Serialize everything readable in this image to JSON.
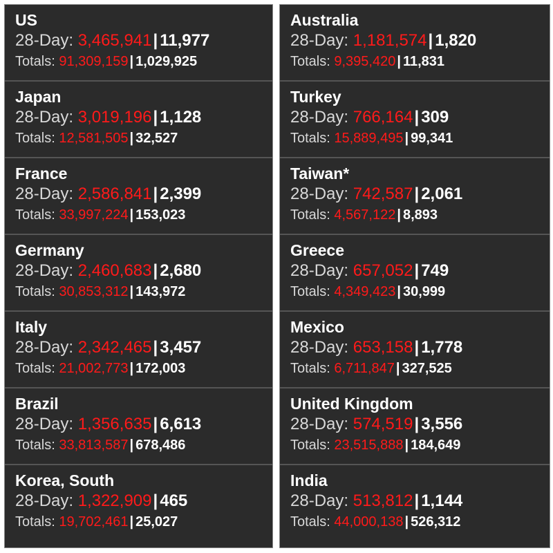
{
  "columns": {
    "left": [
      {
        "country": "US",
        "day28_label": "28-Day:",
        "day28_cases": "3,465,941",
        "day28_deaths": "11,977",
        "totals_label": "Totals:",
        "total_cases": "91,309,159",
        "total_deaths": "1,029,925"
      },
      {
        "country": "Japan",
        "day28_label": "28-Day:",
        "day28_cases": "3,019,196",
        "day28_deaths": "1,128",
        "totals_label": "Totals:",
        "total_cases": "12,581,505",
        "total_deaths": "32,527"
      },
      {
        "country": "France",
        "day28_label": "28-Day:",
        "day28_cases": "2,586,841",
        "day28_deaths": "2,399",
        "totals_label": "Totals:",
        "total_cases": "33,997,224",
        "total_deaths": "153,023"
      },
      {
        "country": "Germany",
        "day28_label": "28-Day:",
        "day28_cases": "2,460,683",
        "day28_deaths": "2,680",
        "totals_label": "Totals:",
        "total_cases": "30,853,312",
        "total_deaths": "143,972"
      },
      {
        "country": "Italy",
        "day28_label": "28-Day:",
        "day28_cases": "2,342,465",
        "day28_deaths": "3,457",
        "totals_label": "Totals:",
        "total_cases": "21,002,773",
        "total_deaths": "172,003"
      },
      {
        "country": "Brazil",
        "day28_label": "28-Day:",
        "day28_cases": "1,356,635",
        "day28_deaths": "6,613",
        "totals_label": "Totals:",
        "total_cases": "33,813,587",
        "total_deaths": "678,486"
      },
      {
        "country": "Korea, South",
        "day28_label": "28-Day:",
        "day28_cases": "1,322,909",
        "day28_deaths": "465",
        "totals_label": "Totals:",
        "total_cases": "19,702,461",
        "total_deaths": "25,027"
      }
    ],
    "right": [
      {
        "country": "Australia",
        "day28_label": "28-Day:",
        "day28_cases": "1,181,574",
        "day28_deaths": "1,820",
        "totals_label": "Totals:",
        "total_cases": "9,395,420",
        "total_deaths": "11,831"
      },
      {
        "country": "Turkey",
        "day28_label": "28-Day:",
        "day28_cases": "766,164",
        "day28_deaths": "309",
        "totals_label": "Totals:",
        "total_cases": "15,889,495",
        "total_deaths": "99,341"
      },
      {
        "country": "Taiwan*",
        "day28_label": "28-Day:",
        "day28_cases": "742,587",
        "day28_deaths": "2,061",
        "totals_label": "Totals:",
        "total_cases": "4,567,122",
        "total_deaths": "8,893"
      },
      {
        "country": "Greece",
        "day28_label": "28-Day:",
        "day28_cases": "657,052",
        "day28_deaths": "749",
        "totals_label": "Totals:",
        "total_cases": "4,349,423",
        "total_deaths": "30,999"
      },
      {
        "country": "Mexico",
        "day28_label": "28-Day:",
        "day28_cases": "653,158",
        "day28_deaths": "1,778",
        "totals_label": "Totals:",
        "total_cases": "6,711,847",
        "total_deaths": "327,525"
      },
      {
        "country": "United Kingdom",
        "day28_label": "28-Day:",
        "day28_cases": "574,519",
        "day28_deaths": "3,556",
        "totals_label": "Totals:",
        "total_cases": "23,515,888",
        "total_deaths": "184,649"
      },
      {
        "country": "India",
        "day28_label": "28-Day:",
        "day28_cases": "513,812",
        "day28_deaths": "1,144",
        "totals_label": "Totals:",
        "total_cases": "44,000,138",
        "total_deaths": "526,312"
      }
    ]
  },
  "separator": "|",
  "colors": {
    "background": "#2b2b2b",
    "cases": "#ff1a1a",
    "deaths": "#ffffff",
    "label": "#d8d8d8",
    "divider": "#555555"
  }
}
